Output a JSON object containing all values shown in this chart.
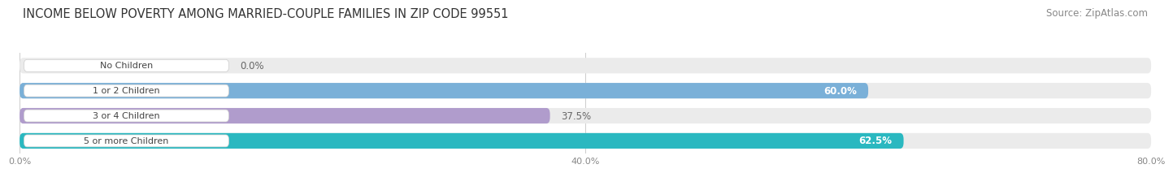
{
  "title": "INCOME BELOW POVERTY AMONG MARRIED-COUPLE FAMILIES IN ZIP CODE 99551",
  "source": "Source: ZipAtlas.com",
  "categories": [
    "No Children",
    "1 or 2 Children",
    "3 or 4 Children",
    "5 or more Children"
  ],
  "values": [
    0.0,
    60.0,
    37.5,
    62.5
  ],
  "bar_colors": [
    "#f0a0a8",
    "#7ab0d8",
    "#b09ccc",
    "#2ab8c0"
  ],
  "value_labels": [
    "0.0%",
    "60.0%",
    "37.5%",
    "62.5%"
  ],
  "value_inside": [
    false,
    true,
    false,
    true
  ],
  "xlim": [
    0,
    80
  ],
  "xtick_vals": [
    0.0,
    40.0,
    80.0
  ],
  "xtick_labels": [
    "0.0%",
    "40.0%",
    "80.0%"
  ],
  "title_fontsize": 10.5,
  "source_fontsize": 8.5,
  "bar_height": 0.62,
  "bg_color": "#ffffff",
  "bar_bg_color": "#ebebeb",
  "label_pill_color": "#ffffff",
  "label_text_color": "#444444",
  "value_inside_color": "#ffffff",
  "value_outside_color": "#666666"
}
